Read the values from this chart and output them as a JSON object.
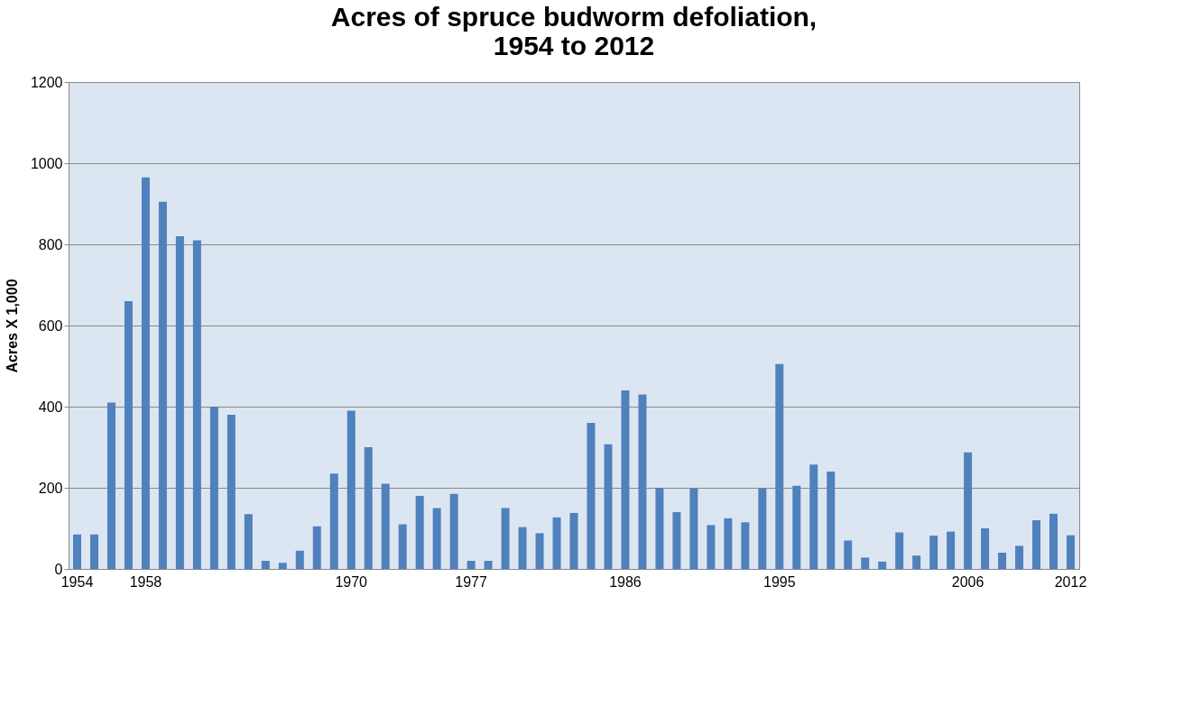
{
  "chart_data": {
    "type": "bar",
    "title": "Acres of  spruce budworm defoliation,\n1954 to 2012",
    "ylabel": "Acres  X  1,000",
    "categories": [
      "1954",
      null,
      null,
      null,
      "1958",
      null,
      null,
      null,
      null,
      null,
      null,
      null,
      null,
      null,
      null,
      null,
      "1970",
      null,
      null,
      null,
      null,
      null,
      null,
      "1977",
      null,
      null,
      null,
      null,
      null,
      null,
      null,
      null,
      "1986",
      null,
      null,
      null,
      null,
      null,
      null,
      null,
      null,
      "1995",
      null,
      null,
      null,
      null,
      null,
      null,
      null,
      null,
      null,
      null,
      "2006",
      null,
      null,
      null,
      null,
      null,
      "2012"
    ],
    "values": [
      85,
      85,
      410,
      660,
      965,
      905,
      820,
      810,
      400,
      380,
      135,
      20,
      15,
      45,
      105,
      235,
      390,
      300,
      210,
      110,
      180,
      150,
      185,
      20,
      20,
      150,
      103,
      88,
      127,
      138,
      360,
      307,
      440,
      430,
      200,
      140,
      198,
      108,
      125,
      115,
      198,
      505,
      205,
      257,
      240,
      70,
      28,
      18,
      90,
      33,
      82,
      92,
      287,
      100,
      40,
      57,
      120,
      136,
      83
    ],
    "color": "#4f81bd",
    "ylim": [
      0,
      1200
    ],
    "yticks": [
      0,
      200,
      400,
      600,
      800,
      1000,
      1200
    ],
    "grid": "y"
  }
}
